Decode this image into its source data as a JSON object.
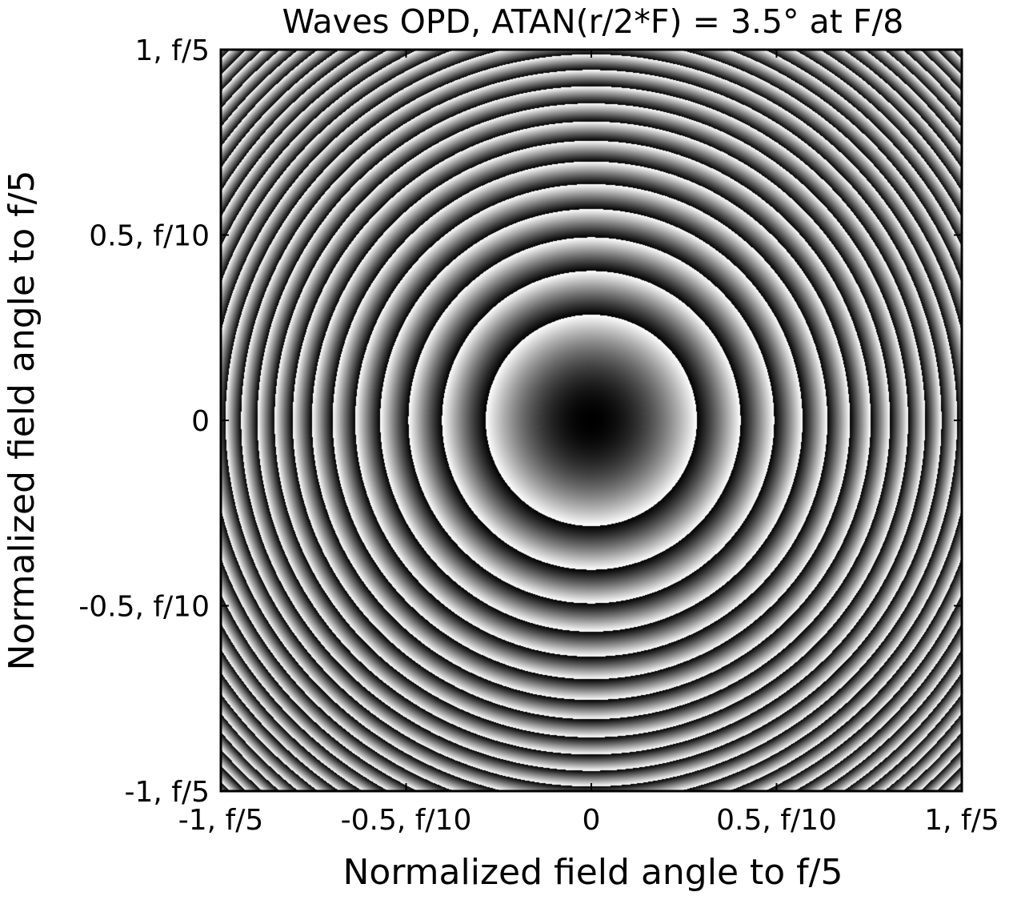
{
  "chart_data": {
    "type": "heatmap",
    "title": "Waves OPD, ATAN(r/2*F) = 3.5° at F/8",
    "xlabel": "Normalized field angle to f/5",
    "ylabel": "Normalized field angle to f/5",
    "xlim": [
      -1,
      1
    ],
    "ylim": [
      -1,
      1
    ],
    "colormap": "gray",
    "pattern": "concentric wrapped phase fringes centered at origin, dark at centre brightening outward, wrap at radius 0.285 then period shrinking with radius",
    "fringe_model": {
      "function": "frac((r / r_first)^2)",
      "r_first": 0.285,
      "center": [
        0,
        0
      ]
    },
    "x_ticks": [
      {
        "value": -1,
        "label": "-1, f/5"
      },
      {
        "value": -0.5,
        "label": "-0.5, f/10"
      },
      {
        "value": 0,
        "label": "0"
      },
      {
        "value": 0.5,
        "label": "0.5, f/10"
      },
      {
        "value": 1,
        "label": "1, f/5"
      }
    ],
    "y_ticks": [
      {
        "value": 1,
        "label": "1, f/5"
      },
      {
        "value": 0.5,
        "label": "0.5, f/10"
      },
      {
        "value": 0,
        "label": "0"
      },
      {
        "value": -0.5,
        "label": "-0.5, f/10"
      },
      {
        "value": -1,
        "label": "-1, f/5"
      }
    ],
    "grid": false,
    "colorbar": false,
    "colors": {
      "fringe_dark": "#000000",
      "fringe_light": "#ffffff",
      "frame": "#000000"
    }
  }
}
